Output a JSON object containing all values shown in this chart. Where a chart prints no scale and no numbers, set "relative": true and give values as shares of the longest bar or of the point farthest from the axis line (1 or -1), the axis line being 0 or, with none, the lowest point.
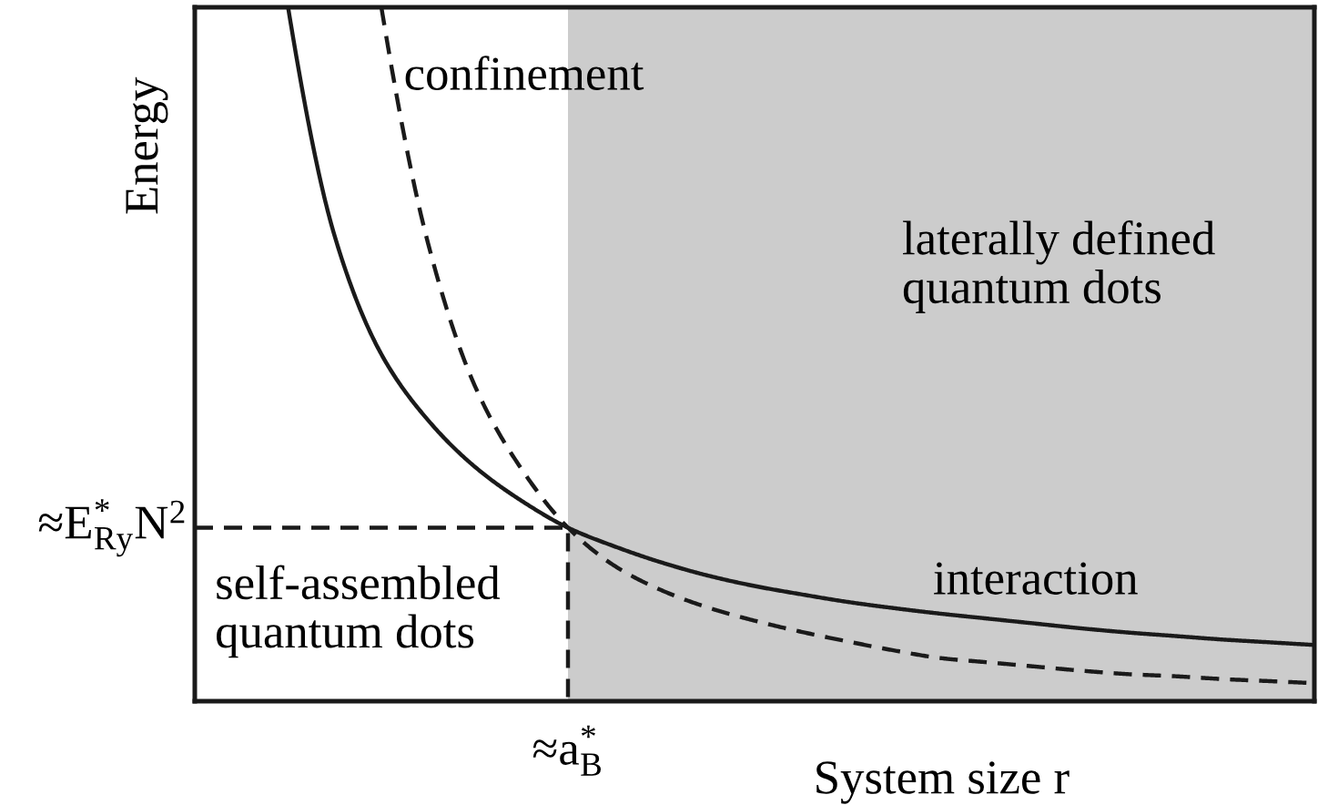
{
  "chart_data": {
    "type": "line",
    "relative": true,
    "xlabel": "System size r",
    "ylabel": "Energy",
    "categories": [
      null,
      null,
      null,
      null,
      null,
      null,
      null,
      null,
      null,
      null,
      null,
      null,
      null,
      null,
      null,
      null,
      null,
      null,
      null,
      null,
      null,
      null,
      null,
      null,
      null
    ],
    "series": [
      {
        "name": "interaction",
        "color": "#1a1a1a",
        "line_style": "solid",
        "values": [
          null,
          null,
          1.0,
          0.67,
          0.5,
          0.405,
          0.338,
          0.289,
          0.25,
          0.223,
          0.2,
          0.181,
          0.166,
          0.154,
          0.143,
          0.134,
          0.126,
          0.119,
          0.112,
          0.105,
          0.099,
          0.094,
          0.089,
          0.085,
          0.081
        ]
      },
      {
        "name": "confinement",
        "color": "#1a1a1a",
        "line_style": "dashed",
        "values": [
          null,
          null,
          null,
          null,
          1.0,
          0.66,
          0.455,
          0.335,
          0.25,
          0.195,
          0.16,
          0.135,
          0.116,
          0.1,
          0.086,
          0.073,
          0.062,
          0.056,
          0.05,
          0.044,
          0.039,
          0.036,
          0.032,
          0.029,
          0.026
        ]
      },
      {
        "type": "area",
        "name": "laterally defined\nquantum dots",
        "color": "#cccccc",
        "values": [
          null,
          null,
          null,
          null,
          null,
          null,
          null,
          null,
          1.0,
          1.0,
          1.0,
          1.0,
          1.0,
          1.0,
          1.0,
          1.0,
          1.0,
          1.0,
          1.0,
          1.0,
          1.0,
          1.0,
          1.0,
          1.0,
          1.0
        ]
      },
      {
        "type": "step",
        "color": "#1a1a1a",
        "line_style": "dashed",
        "values": [
          0.25,
          0.25,
          0.25,
          0.25,
          0.25,
          0.25,
          0.25,
          0.25,
          0,
          null,
          null,
          null,
          null,
          null,
          null,
          null,
          null,
          null,
          null,
          null,
          null,
          null,
          null,
          null,
          null
        ]
      }
    ],
    "annotations": [
      "≈E$^{*}$$_{Ry}$N$^{2}$",
      "≈a$^{*}$$_{B}$",
      "self-assembled\nquantum dots"
    ]
  }
}
